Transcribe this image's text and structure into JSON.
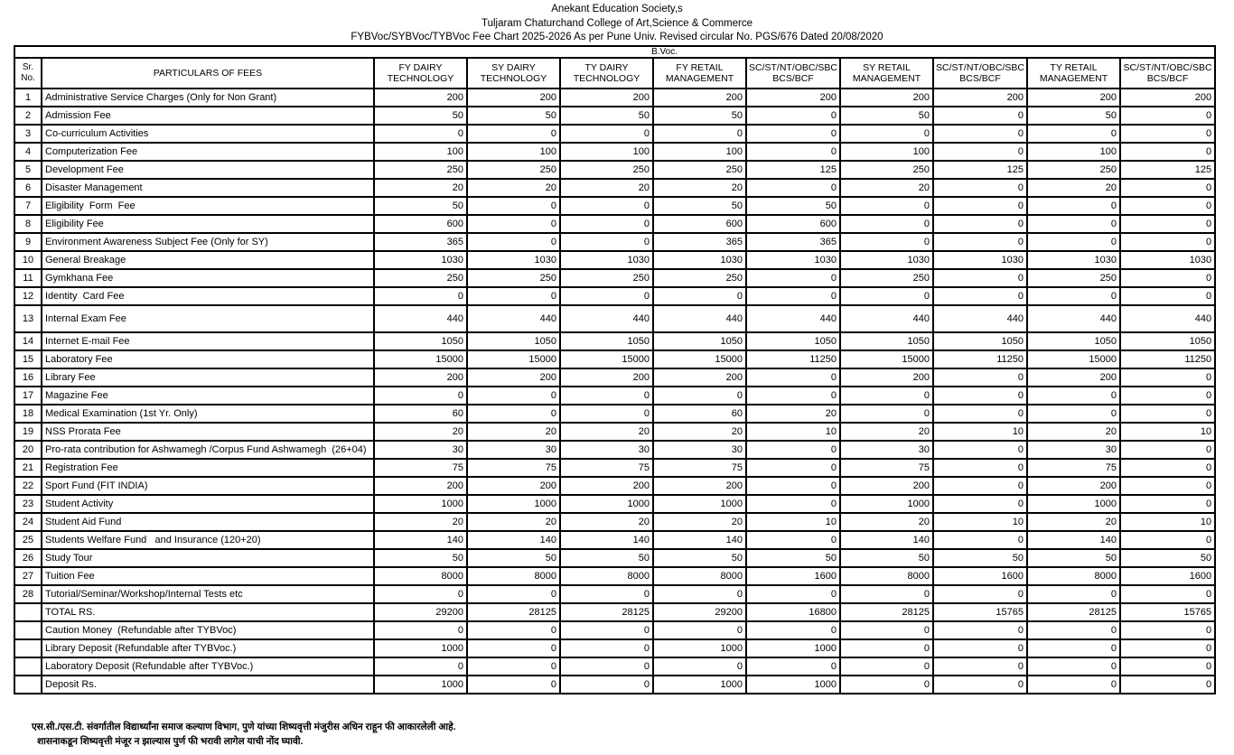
{
  "page": {
    "header_line1": "Anekant Education Society,s",
    "header_line2": "Tuljaram Chaturchand College of Art,Science & Commerce",
    "header_line3": "FYBVoc/SYBVoc/TYBVoc  Fee Chart 2025-2026 As per Pune Univ. Revised circular No. PGS/676 Dated 20/08/2020"
  },
  "table": {
    "group_header": "B.Voc.",
    "columns": [
      "Sr. No.",
      "PARTICULARS  OF FEES",
      "FY DAIRY\nTECHNOLOGY",
      "SY DAIRY\nTECHNOLOGY",
      "TY DAIRY\nTECHNOLOGY",
      "FY RETAIL\nMANAGEMENT",
      "SC/ST/NT/OBC/SBC\nBCS/BCF",
      "SY RETAIL\nMANAGEMENT",
      "SC/ST/NT/OBC/SBC\nBCS/BCF",
      "TY RETAIL\nMANAGEMENT",
      "SC/ST/NT/OBC/SBC\nBCS/BCF"
    ],
    "rows": [
      {
        "sr": "1",
        "label": "Administrative Service Charges (Only for Non Grant)",
        "values": [
          200,
          200,
          200,
          200,
          200,
          200,
          200,
          200,
          200
        ]
      },
      {
        "sr": "2",
        "label": "Admission Fee",
        "values": [
          50,
          50,
          50,
          50,
          0,
          50,
          0,
          50,
          0
        ]
      },
      {
        "sr": "3",
        "label": "Co-curriculum Activities",
        "values": [
          0,
          0,
          0,
          0,
          0,
          0,
          0,
          0,
          0
        ]
      },
      {
        "sr": "4",
        "label": "Computerization Fee",
        "values": [
          100,
          100,
          100,
          100,
          0,
          100,
          0,
          100,
          0
        ]
      },
      {
        "sr": "5",
        "label": "Development Fee",
        "values": [
          250,
          250,
          250,
          250,
          125,
          250,
          125,
          250,
          125
        ]
      },
      {
        "sr": "6",
        "label": "Disaster Management",
        "values": [
          20,
          20,
          20,
          20,
          0,
          20,
          0,
          20,
          0
        ]
      },
      {
        "sr": "7",
        "label": "Eligibility  Form  Fee",
        "values": [
          50,
          0,
          0,
          50,
          50,
          0,
          0,
          0,
          0
        ]
      },
      {
        "sr": "8",
        "label": "Eligibility Fee",
        "values": [
          600,
          0,
          0,
          600,
          600,
          0,
          0,
          0,
          0
        ]
      },
      {
        "sr": "9",
        "label": "Environment Awareness Subject Fee (Only for SY)",
        "values": [
          365,
          0,
          0,
          365,
          365,
          0,
          0,
          0,
          0
        ]
      },
      {
        "sr": "10",
        "label": "General Breakage",
        "values": [
          1030,
          1030,
          1030,
          1030,
          1030,
          1030,
          1030,
          1030,
          1030
        ]
      },
      {
        "sr": "11",
        "label": "Gymkhana Fee",
        "values": [
          250,
          250,
          250,
          250,
          0,
          250,
          0,
          250,
          0
        ]
      },
      {
        "sr": "12",
        "label": "Identity  Card Fee",
        "values": [
          0,
          0,
          0,
          0,
          0,
          0,
          0,
          0,
          0
        ]
      },
      {
        "sr": "13",
        "label": "Internal Exam Fee",
        "tall": true,
        "values": [
          440,
          440,
          440,
          440,
          440,
          440,
          440,
          440,
          440
        ]
      },
      {
        "sr": "14",
        "label": "Internet E-mail Fee",
        "values": [
          1050,
          1050,
          1050,
          1050,
          1050,
          1050,
          1050,
          1050,
          1050
        ]
      },
      {
        "sr": "15",
        "label": "Laboratory Fee",
        "values": [
          15000,
          15000,
          15000,
          15000,
          11250,
          15000,
          11250,
          15000,
          11250
        ]
      },
      {
        "sr": "16",
        "label": "Library Fee",
        "values": [
          200,
          200,
          200,
          200,
          0,
          200,
          0,
          200,
          0
        ]
      },
      {
        "sr": "17",
        "label": "Magazine Fee",
        "values": [
          0,
          0,
          0,
          0,
          0,
          0,
          0,
          0,
          0
        ]
      },
      {
        "sr": "18",
        "label": "Medical Examination (1st Yr. Only)",
        "values": [
          60,
          0,
          0,
          60,
          20,
          0,
          0,
          0,
          0
        ]
      },
      {
        "sr": "19",
        "label": "NSS Prorata Fee",
        "values": [
          20,
          20,
          20,
          20,
          10,
          20,
          10,
          20,
          10
        ]
      },
      {
        "sr": "20",
        "label": "Pro-rata contribution for Ashwamegh /Corpus Fund Ashwamegh  (26+04)",
        "values": [
          30,
          30,
          30,
          30,
          0,
          30,
          0,
          30,
          0
        ]
      },
      {
        "sr": "21",
        "label": "Registration Fee",
        "values": [
          75,
          75,
          75,
          75,
          0,
          75,
          0,
          75,
          0
        ]
      },
      {
        "sr": "22",
        "label": "Sport Fund (FIT INDIA)",
        "values": [
          200,
          200,
          200,
          200,
          0,
          200,
          0,
          200,
          0
        ]
      },
      {
        "sr": "23",
        "label": "Student Activity",
        "values": [
          1000,
          1000,
          1000,
          1000,
          0,
          1000,
          0,
          1000,
          0
        ]
      },
      {
        "sr": "24",
        "label": "Student Aid Fund",
        "values": [
          20,
          20,
          20,
          20,
          10,
          20,
          10,
          20,
          10
        ]
      },
      {
        "sr": "25",
        "label": "Students Welfare Fund   and Insurance (120+20)",
        "values": [
          140,
          140,
          140,
          140,
          0,
          140,
          0,
          140,
          0
        ]
      },
      {
        "sr": "26",
        "label": "Study Tour",
        "values": [
          50,
          50,
          50,
          50,
          50,
          50,
          50,
          50,
          50
        ]
      },
      {
        "sr": "27",
        "label": "Tuition Fee",
        "values": [
          8000,
          8000,
          8000,
          8000,
          1600,
          8000,
          1600,
          8000,
          1600
        ]
      },
      {
        "sr": "28",
        "label": "Tutorial/Seminar/Workshop/Internal Tests etc",
        "values": [
          0,
          0,
          0,
          0,
          0,
          0,
          0,
          0,
          0
        ]
      }
    ],
    "total_row": {
      "sr": "",
      "label": "TOTAL RS.",
      "values": [
        29200,
        28125,
        28125,
        29200,
        16800,
        28125,
        15765,
        28125,
        15765
      ]
    },
    "deposit_rows": [
      {
        "sr": "",
        "label": "Caution Money  (Refundable after TYBVoc)",
        "values": [
          0,
          0,
          0,
          0,
          0,
          0,
          0,
          0,
          0
        ]
      },
      {
        "sr": "",
        "label": "Library Deposit (Refundable after TYBVoc.)",
        "values": [
          1000,
          0,
          0,
          1000,
          1000,
          0,
          0,
          0,
          0
        ]
      },
      {
        "sr": "",
        "label": "Laboratory Deposit (Refundable after TYBVoc.)",
        "values": [
          0,
          0,
          0,
          0,
          0,
          0,
          0,
          0,
          0
        ]
      },
      {
        "sr": "",
        "label": "Deposit Rs.",
        "values": [
          1000,
          0,
          0,
          1000,
          1000,
          0,
          0,
          0,
          0
        ]
      }
    ]
  },
  "footnotes": {
    "note1": "एस.सी./एस.टी. संवर्गातील विद्यार्थ्यांना समाज कल्याण विभाग, पुणे यांच्या शिष्यवृत्ती मंजुरीस अधिन राहून फी आकारलेली आहे.",
    "note2": "शासनाकडून शिष्यवृत्ती मंजूर न झाल्यास पुर्ण फी भरावी लागेल याची नोंद घ्यावी."
  }
}
